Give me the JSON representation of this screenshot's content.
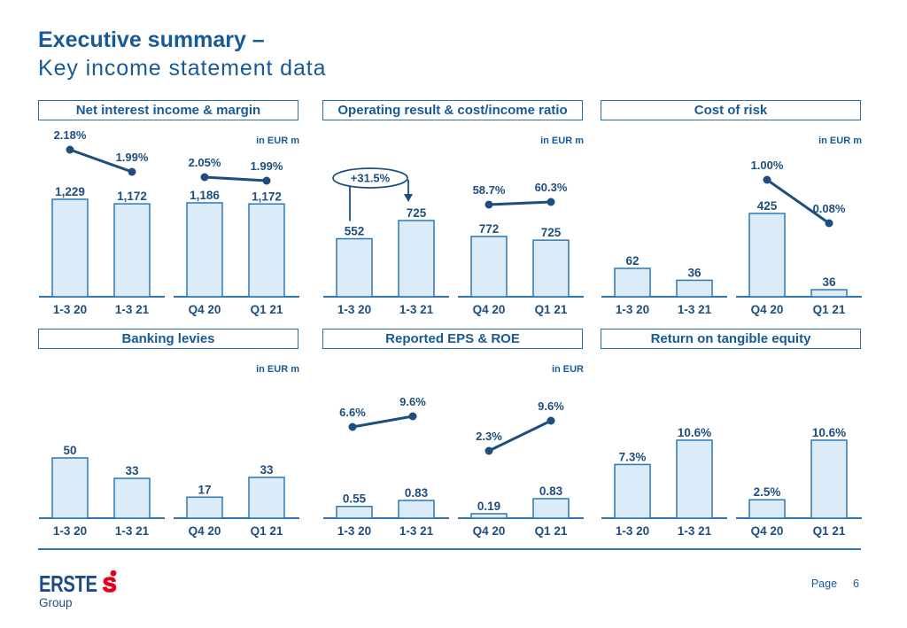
{
  "page": {
    "title": "Executive summary –",
    "subtitle": "Key income statement data",
    "footer": {
      "logo_text": "ERSTE",
      "logo_subtext": "Group",
      "page_label": "Page",
      "page_number": "6"
    }
  },
  "colors": {
    "accent_blue": "#175a96",
    "navy_text": "#1d4e7e",
    "bar_fill": "#dbebf7",
    "bar_border": "#2f78b3",
    "axis_blue": "#2e75b5",
    "logo_red": "#e2001a"
  },
  "chart_data": [
    {
      "type": "bar",
      "title": "Net interest income & margin",
      "unit": "in EUR m",
      "groups": [
        {
          "categories": [
            "1-3 20",
            "1-3 21"
          ],
          "values": [
            1229,
            1172
          ],
          "labels": [
            "1,229",
            "1,172"
          ],
          "line": {
            "values": [
              2.18,
              1.99
            ],
            "labels": [
              "2.18%",
              "1.99%"
            ]
          }
        },
        {
          "categories": [
            "Q4 20",
            "Q1 21"
          ],
          "values": [
            1186,
            1172
          ],
          "labels": [
            "1,186",
            "1,172"
          ],
          "line": {
            "values": [
              2.05,
              1.99
            ],
            "labels": [
              "2.05%",
              "1.99%"
            ]
          }
        }
      ]
    },
    {
      "type": "bar",
      "title": "Operating result & cost/income ratio",
      "unit": "in EUR m",
      "groups": [
        {
          "categories": [
            "1-3 20",
            "1-3 21"
          ],
          "values": [
            552,
            725
          ],
          "labels": [
            "552",
            "725"
          ],
          "annotation": "+31.5%"
        },
        {
          "categories": [
            "Q4 20",
            "Q1 21"
          ],
          "values": [
            772,
            725
          ],
          "labels": [
            "772",
            "725"
          ],
          "line": {
            "values": [
              58.7,
              60.3
            ],
            "labels": [
              "58.7%",
              "60.3%"
            ]
          }
        }
      ]
    },
    {
      "type": "bar",
      "title": "Cost of risk",
      "unit": "in EUR m",
      "groups": [
        {
          "categories": [
            "1-3 20",
            "1-3 21"
          ],
          "values": [
            62,
            36
          ],
          "labels": [
            "62",
            "36"
          ]
        },
        {
          "categories": [
            "Q4 20",
            "Q1 21"
          ],
          "values": [
            425,
            36
          ],
          "labels": [
            "425",
            "36"
          ],
          "line": {
            "values": [
              1.0,
              0.08
            ],
            "labels": [
              "1.00%",
              "0.08%"
            ]
          }
        }
      ]
    },
    {
      "type": "bar",
      "title": "Banking levies",
      "unit": "in EUR m",
      "groups": [
        {
          "categories": [
            "1-3 20",
            "1-3 21"
          ],
          "values": [
            50,
            33
          ],
          "labels": [
            "50",
            "33"
          ]
        },
        {
          "categories": [
            "Q4 20",
            "Q1 21"
          ],
          "values": [
            17,
            33
          ],
          "labels": [
            "17",
            "33"
          ]
        }
      ]
    },
    {
      "type": "bar",
      "title": "Reported EPS & ROE",
      "unit": "in EUR",
      "groups": [
        {
          "categories": [
            "1-3 20",
            "1-3 21"
          ],
          "values": [
            0.55,
            0.83
          ],
          "labels": [
            "0.55",
            "0.83"
          ],
          "line": {
            "values": [
              6.6,
              9.6
            ],
            "labels": [
              "6.6%",
              "9.6%"
            ]
          }
        },
        {
          "categories": [
            "Q4 20",
            "Q1 21"
          ],
          "values": [
            0.19,
            0.83
          ],
          "labels": [
            "0.19",
            "0.83"
          ],
          "line": {
            "values": [
              2.3,
              9.6
            ],
            "labels": [
              "2.3%",
              "9.6%"
            ]
          }
        }
      ]
    },
    {
      "type": "bar",
      "title": "Return on tangible equity",
      "unit": "",
      "groups": [
        {
          "categories": [
            "1-3 20",
            "1-3 21"
          ],
          "values": [
            7.3,
            10.6
          ],
          "labels": [
            "7.3%",
            "10.6%"
          ]
        },
        {
          "categories": [
            "Q4 20",
            "Q1 21"
          ],
          "values": [
            2.5,
            10.6
          ],
          "labels": [
            "2.5%",
            "10.6%"
          ]
        }
      ]
    }
  ]
}
